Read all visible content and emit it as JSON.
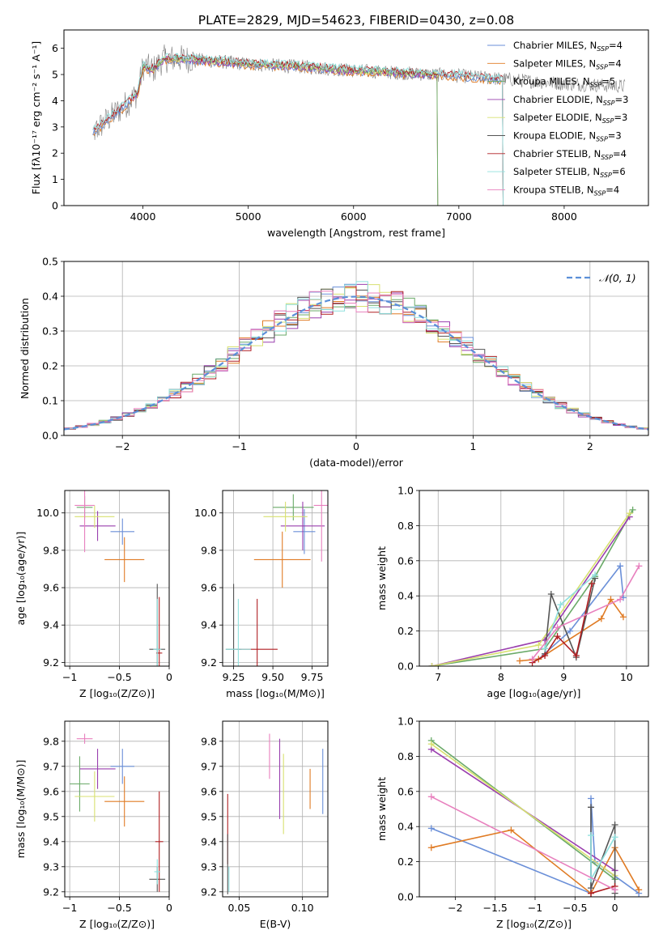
{
  "figure": {
    "title": "PLATE=2829, MJD=54623, FIBERID=0430, z=0.08"
  },
  "colors": [
    "#6a8fd8",
    "#e07b24",
    "#6aaa68",
    "#9a3fae",
    "#d8e070",
    "#555555",
    "#b01e22",
    "#8fe0de",
    "#e880be"
  ],
  "chart_data": [
    {
      "id": "spectrum",
      "type": "line",
      "xlabel": "wavelength [Angstrom, rest frame]",
      "ylabel": "Flux [fλ10⁻¹⁷ erg cm⁻² s⁻¹ A⁻¹]",
      "xlim": [
        3250,
        8800
      ],
      "ylim": [
        0,
        6.7
      ],
      "xticks": [
        4000,
        5000,
        6000,
        7000,
        8000
      ],
      "yticks": [
        0,
        1,
        2,
        3,
        4,
        5,
        6
      ],
      "grid": false,
      "legend_position": "right",
      "data_series": {
        "name": "",
        "color": "#808080",
        "x_range": [
          3525,
          8580
        ],
        "level_points": [
          [
            3525,
            2.8
          ],
          [
            3700,
            3.4
          ],
          [
            3850,
            3.9
          ],
          [
            3950,
            4.3
          ],
          [
            4000,
            5.3
          ],
          [
            4100,
            5.2
          ],
          [
            4200,
            5.6
          ],
          [
            4400,
            5.6
          ],
          [
            4700,
            5.5
          ],
          [
            5000,
            5.4
          ],
          [
            5500,
            5.3
          ],
          [
            6000,
            5.15
          ],
          [
            6500,
            5.05
          ],
          [
            7000,
            4.95
          ],
          [
            7500,
            4.8
          ],
          [
            8000,
            4.65
          ],
          [
            8580,
            4.55
          ]
        ]
      },
      "legend": [
        {
          "label": "Chabrier MILES, N",
          "sub": "SSP",
          "tail": "=4",
          "color": "#6a8fd8"
        },
        {
          "label": "Salpeter MILES, N",
          "sub": "SSP",
          "tail": "=4",
          "color": "#e07b24"
        },
        {
          "label": "Kroupa MILES, N",
          "sub": "SSP",
          "tail": "=5",
          "color": "#6aaa68"
        },
        {
          "label": "Chabrier ELODIE, N",
          "sub": "SSP",
          "tail": "=3",
          "color": "#9a3fae"
        },
        {
          "label": "Salpeter ELODIE, N",
          "sub": "SSP",
          "tail": "=3",
          "color": "#d8e070"
        },
        {
          "label": "Kroupa ELODIE, N",
          "sub": "SSP",
          "tail": "=3",
          "color": "#555555"
        },
        {
          "label": "Chabrier STELIB, N",
          "sub": "SSP",
          "tail": "=4",
          "color": "#b01e22"
        },
        {
          "label": "Salpeter STELIB, N",
          "sub": "SSP",
          "tail": "=6",
          "color": "#8fe0de"
        },
        {
          "label": "Kroupa STELIB, N",
          "sub": "SSP",
          "tail": "=4",
          "color": "#e880be"
        }
      ],
      "model_ranges": [
        {
          "color": "#e07b24",
          "x_range": [
            3525,
            7420
          ]
        },
        {
          "color": "#6a8fd8",
          "x_range": [
            3525,
            7420
          ]
        },
        {
          "color": "#9a3fae",
          "x_range": [
            3900,
            6800
          ]
        },
        {
          "color": "#d8e070",
          "x_range": [
            3900,
            6800
          ]
        },
        {
          "color": "#6aaa68",
          "x_range": [
            3900,
            6800
          ]
        },
        {
          "color": "#b01e22",
          "x_range": [
            3525,
            7420
          ]
        },
        {
          "color": "#8fe0de",
          "x_range": [
            3525,
            7420
          ]
        }
      ]
    },
    {
      "id": "residuals",
      "type": "step",
      "xlabel": "(data-model)/error",
      "ylabel": "Normed distribution",
      "xlim": [
        -2.5,
        2.5
      ],
      "ylim": [
        0,
        0.5
      ],
      "xticks": [
        -2,
        -1,
        0,
        1,
        2
      ],
      "yticks": [
        0.0,
        0.1,
        0.2,
        0.3,
        0.4,
        0.5
      ],
      "grid": true,
      "legend_position": "top-right",
      "bin_width": 0.1,
      "reference_curve": {
        "label": "𝒩(0, 1)",
        "color": "#5b8fd8"
      },
      "series_colors": [
        "#6a8fd8",
        "#e07b24",
        "#6aaa68",
        "#9a3fae",
        "#d8e070",
        "#555555",
        "#b01e22",
        "#8fe0de",
        "#e880be"
      ]
    },
    {
      "id": "age_vs_Z",
      "type": "errorbar",
      "xlabel": "Z [log₁₀(Z/Z⊙)]",
      "ylabel": "age  [log₁₀(age/yr)]",
      "xlim": [
        -1.05,
        0.0
      ],
      "ylim": [
        9.18,
        10.12
      ],
      "xticks": [
        -1.0,
        -0.5,
        0.0
      ],
      "yticks": [
        9.2,
        9.4,
        9.6,
        9.8,
        10.0
      ],
      "grid": true,
      "points": [
        {
          "x": -0.47,
          "y": 9.9,
          "xerr": 0.12,
          "yerr": 0.07,
          "color": "#6a8fd8"
        },
        {
          "x": -0.45,
          "y": 9.75,
          "xerr": 0.2,
          "yerr": 0.12,
          "color": "#e07b24"
        },
        {
          "x": -0.85,
          "y": 10.03,
          "xerr": 0.08,
          "yerr": 0.06,
          "color": "#6aaa68"
        },
        {
          "x": -0.72,
          "y": 9.93,
          "xerr": 0.18,
          "yerr": 0.08,
          "color": "#9a3fae"
        },
        {
          "x": -0.75,
          "y": 9.98,
          "xerr": 0.2,
          "yerr": 0.06,
          "color": "#d8e070"
        },
        {
          "x": -0.12,
          "y": 9.27,
          "xerr": 0.08,
          "yerr": 0.35,
          "color": "#555555"
        },
        {
          "x": -0.1,
          "y": 9.25,
          "xerr": 0.03,
          "yerr": 0.3,
          "color": "#b01e22"
        },
        {
          "x": -0.12,
          "y": 9.27,
          "xerr": 0.04,
          "yerr": 0.27,
          "color": "#8fe0de"
        },
        {
          "x": -0.85,
          "y": 10.04,
          "xerr": 0.1,
          "yerr": 0.25,
          "color": "#e880be"
        }
      ]
    },
    {
      "id": "age_vs_mass",
      "type": "errorbar",
      "xlabel": "mass [log₁₀(M/M⊙)]",
      "ylabel": "",
      "xlim": [
        9.18,
        9.85
      ],
      "ylim": [
        9.18,
        10.12
      ],
      "xticks": [
        9.25,
        9.5,
        9.75
      ],
      "xtick_labels": [
        "9.25",
        "9.50",
        "9.75"
      ],
      "yticks": [
        9.2,
        9.4,
        9.6,
        9.8,
        10.0
      ],
      "grid": true,
      "points": [
        {
          "x": 9.7,
          "y": 9.9,
          "xerr": 0.07,
          "yerr": 0.12,
          "color": "#6a8fd8"
        },
        {
          "x": 9.56,
          "y": 9.75,
          "xerr": 0.18,
          "yerr": 0.15,
          "color": "#e07b24"
        },
        {
          "x": 9.63,
          "y": 10.03,
          "xerr": 0.13,
          "yerr": 0.07,
          "color": "#6aaa68"
        },
        {
          "x": 9.69,
          "y": 9.93,
          "xerr": 0.14,
          "yerr": 0.13,
          "color": "#9a3fae"
        },
        {
          "x": 9.58,
          "y": 9.98,
          "xerr": 0.14,
          "yerr": 0.08,
          "color": "#d8e070"
        },
        {
          "x": 9.25,
          "y": 9.27,
          "xerr": 0.05,
          "yerr": 0.35,
          "color": "#555555"
        },
        {
          "x": 9.4,
          "y": 9.27,
          "xerr": 0.13,
          "yerr": 0.27,
          "color": "#b01e22"
        },
        {
          "x": 9.28,
          "y": 9.27,
          "xerr": 0.08,
          "yerr": 0.27,
          "color": "#8fe0de"
        },
        {
          "x": 9.81,
          "y": 10.04,
          "xerr": 0.05,
          "yerr": 0.3,
          "color": "#e880be"
        }
      ]
    },
    {
      "id": "weight_vs_age",
      "type": "line",
      "xlabel": "age  [log₁₀(age/yr)]",
      "ylabel": "mass weight",
      "xlim": [
        6.7,
        10.35
      ],
      "ylim": [
        0,
        1.0
      ],
      "xticks": [
        7,
        8,
        9,
        10
      ],
      "yticks": [
        0.0,
        0.2,
        0.4,
        0.6,
        0.8,
        1.0
      ],
      "grid": true,
      "marker": "+",
      "series": [
        {
          "color": "#6a8fd8",
          "points": [
            [
              8.6,
              0.04
            ],
            [
              9.1,
              0.2
            ],
            [
              9.9,
              0.57
            ],
            [
              9.95,
              0.39
            ]
          ]
        },
        {
          "color": "#e07b24",
          "points": [
            [
              8.3,
              0.03
            ],
            [
              8.6,
              0.04
            ],
            [
              9.6,
              0.27
            ],
            [
              9.75,
              0.38
            ],
            [
              9.95,
              0.28
            ]
          ]
        },
        {
          "color": "#6aaa68",
          "points": [
            [
              6.9,
              0.0
            ],
            [
              8.7,
              0.1
            ],
            [
              9.5,
              0.51
            ],
            [
              10.1,
              0.89
            ]
          ]
        },
        {
          "color": "#9a3fae",
          "points": [
            [
              6.9,
              0.0
            ],
            [
              8.7,
              0.15
            ],
            [
              10.05,
              0.85
            ]
          ]
        },
        {
          "color": "#d8e070",
          "points": [
            [
              6.9,
              0.0
            ],
            [
              8.6,
              0.12
            ],
            [
              10.05,
              0.87
            ]
          ]
        },
        {
          "color": "#555555",
          "points": [
            [
              8.7,
              0.07
            ],
            [
              8.8,
              0.41
            ],
            [
              9.2,
              0.05
            ],
            [
              9.5,
              0.5
            ]
          ]
        },
        {
          "color": "#b01e22",
          "points": [
            [
              8.5,
              0.02
            ],
            [
              8.7,
              0.06
            ],
            [
              8.9,
              0.17
            ],
            [
              9.2,
              0.06
            ],
            [
              9.45,
              0.47
            ]
          ]
        },
        {
          "color": "#8fe0de",
          "points": [
            [
              8.7,
              0.1
            ],
            [
              8.95,
              0.35
            ],
            [
              9.5,
              0.52
            ]
          ]
        },
        {
          "color": "#e880be",
          "points": [
            [
              8.5,
              0.04
            ],
            [
              8.9,
              0.22
            ],
            [
              9.9,
              0.38
            ],
            [
              10.2,
              0.57
            ]
          ]
        }
      ]
    },
    {
      "id": "mass_vs_Z",
      "type": "errorbar",
      "xlabel": "Z [log₁₀(Z/Z⊙)]",
      "ylabel": "mass [log₁₀(M/M⊙)]",
      "xlim": [
        -1.05,
        0.0
      ],
      "ylim": [
        9.18,
        9.88
      ],
      "xticks": [
        -1.0,
        -0.5,
        0.0
      ],
      "yticks": [
        9.2,
        9.3,
        9.4,
        9.5,
        9.6,
        9.7,
        9.8
      ],
      "grid": true,
      "points": [
        {
          "x": -0.47,
          "y": 9.7,
          "xerr": 0.12,
          "yerr": 0.07,
          "color": "#6a8fd8"
        },
        {
          "x": -0.45,
          "y": 9.56,
          "xerr": 0.2,
          "yerr": 0.1,
          "color": "#e07b24"
        },
        {
          "x": -0.9,
          "y": 9.63,
          "xerr": 0.1,
          "yerr": 0.11,
          "color": "#6aaa68"
        },
        {
          "x": -0.72,
          "y": 9.69,
          "xerr": 0.18,
          "yerr": 0.08,
          "color": "#9a3fae"
        },
        {
          "x": -0.75,
          "y": 9.58,
          "xerr": 0.2,
          "yerr": 0.1,
          "color": "#d8e070"
        },
        {
          "x": -0.12,
          "y": 9.25,
          "xerr": 0.08,
          "yerr": 0.05,
          "color": "#555555"
        },
        {
          "x": -0.1,
          "y": 9.4,
          "xerr": 0.04,
          "yerr": 0.2,
          "color": "#b01e22"
        },
        {
          "x": -0.12,
          "y": 9.28,
          "xerr": 0.03,
          "yerr": 0.05,
          "color": "#8fe0de"
        },
        {
          "x": -0.85,
          "y": 9.81,
          "xerr": 0.08,
          "yerr": 0.02,
          "color": "#e880be"
        }
      ]
    },
    {
      "id": "mass_vs_EBV",
      "type": "errorbar",
      "xlabel": "E(B-V)",
      "ylabel": "",
      "xlim": [
        0.037,
        0.12
      ],
      "ylim": [
        9.18,
        9.88
      ],
      "xticks": [
        0.05,
        0.1
      ],
      "xtick_labels": [
        "0.05",
        "0.10"
      ],
      "yticks": [
        9.2,
        9.3,
        9.4,
        9.5,
        9.6,
        9.7,
        9.8
      ],
      "grid": true,
      "points": [
        {
          "x": 0.116,
          "y": 9.64,
          "xerr": 0.0,
          "yerr": 0.13,
          "color": "#6a8fd8"
        },
        {
          "x": 0.106,
          "y": 9.61,
          "xerr": 0.0,
          "yerr": 0.08,
          "color": "#e07b24"
        },
        {
          "x": 0.085,
          "y": 9.59,
          "xerr": 0.0,
          "yerr": 0.16,
          "color": "#d8e070"
        },
        {
          "x": 0.082,
          "y": 9.65,
          "xerr": 0.0,
          "yerr": 0.16,
          "color": "#9a3fae"
        },
        {
          "x": 0.074,
          "y": 9.74,
          "xerr": 0.0,
          "yerr": 0.09,
          "color": "#e880be"
        },
        {
          "x": 0.041,
          "y": 9.45,
          "xerr": 0.0,
          "yerr": 0.14,
          "color": "#b01e22"
        },
        {
          "x": 0.041,
          "y": 9.31,
          "xerr": 0.0,
          "yerr": 0.12,
          "color": "#555555"
        },
        {
          "x": 0.042,
          "y": 9.25,
          "xerr": 0.0,
          "yerr": 0.05,
          "color": "#8fe0de"
        }
      ]
    },
    {
      "id": "weight_vs_Z",
      "type": "line",
      "xlabel": "Z [log₁₀(Z/Z⊙)]",
      "ylabel": "mass weight",
      "xlim": [
        -2.45,
        0.42
      ],
      "ylim": [
        0,
        1.0
      ],
      "xticks": [
        -2.0,
        -1.5,
        -1.0,
        -0.5,
        0.0
      ],
      "yticks": [
        0.0,
        0.2,
        0.4,
        0.6,
        0.8,
        1.0
      ],
      "grid": true,
      "marker": "+",
      "series": [
        {
          "color": "#6a8fd8",
          "points": [
            [
              -2.3,
              0.39
            ],
            [
              -0.3,
              0.02
            ],
            [
              -0.3,
              0.56
            ],
            [
              -0.25,
              0.2
            ],
            [
              0.3,
              0.02
            ]
          ]
        },
        {
          "color": "#e07b24",
          "points": [
            [
              -2.3,
              0.28
            ],
            [
              -1.3,
              0.38
            ],
            [
              -0.3,
              0.02
            ],
            [
              0.0,
              0.28
            ],
            [
              0.3,
              0.04
            ]
          ]
        },
        {
          "color": "#6aaa68",
          "points": [
            [
              -2.3,
              0.89
            ],
            [
              0.0,
              0.1
            ]
          ]
        },
        {
          "color": "#9a3fae",
          "points": [
            [
              -2.3,
              0.84
            ],
            [
              0.0,
              0.15
            ]
          ]
        },
        {
          "color": "#d8e070",
          "points": [
            [
              -2.3,
              0.87
            ],
            [
              0.0,
              0.12
            ]
          ]
        },
        {
          "color": "#555555",
          "points": [
            [
              -0.3,
              0.51
            ],
            [
              -0.3,
              0.05
            ],
            [
              0.0,
              0.41
            ],
            [
              0.0,
              0.02
            ]
          ]
        },
        {
          "color": "#b01e22",
          "points": [
            [
              -0.3,
              0.02
            ],
            [
              0.0,
              0.06
            ]
          ]
        },
        {
          "color": "#8fe0de",
          "points": [
            [
              -0.3,
              0.35
            ],
            [
              -0.3,
              0.1
            ],
            [
              0.0,
              0.34
            ]
          ]
        },
        {
          "color": "#e880be",
          "points": [
            [
              -2.3,
              0.57
            ],
            [
              0.0,
              0.04
            ]
          ]
        }
      ]
    }
  ]
}
